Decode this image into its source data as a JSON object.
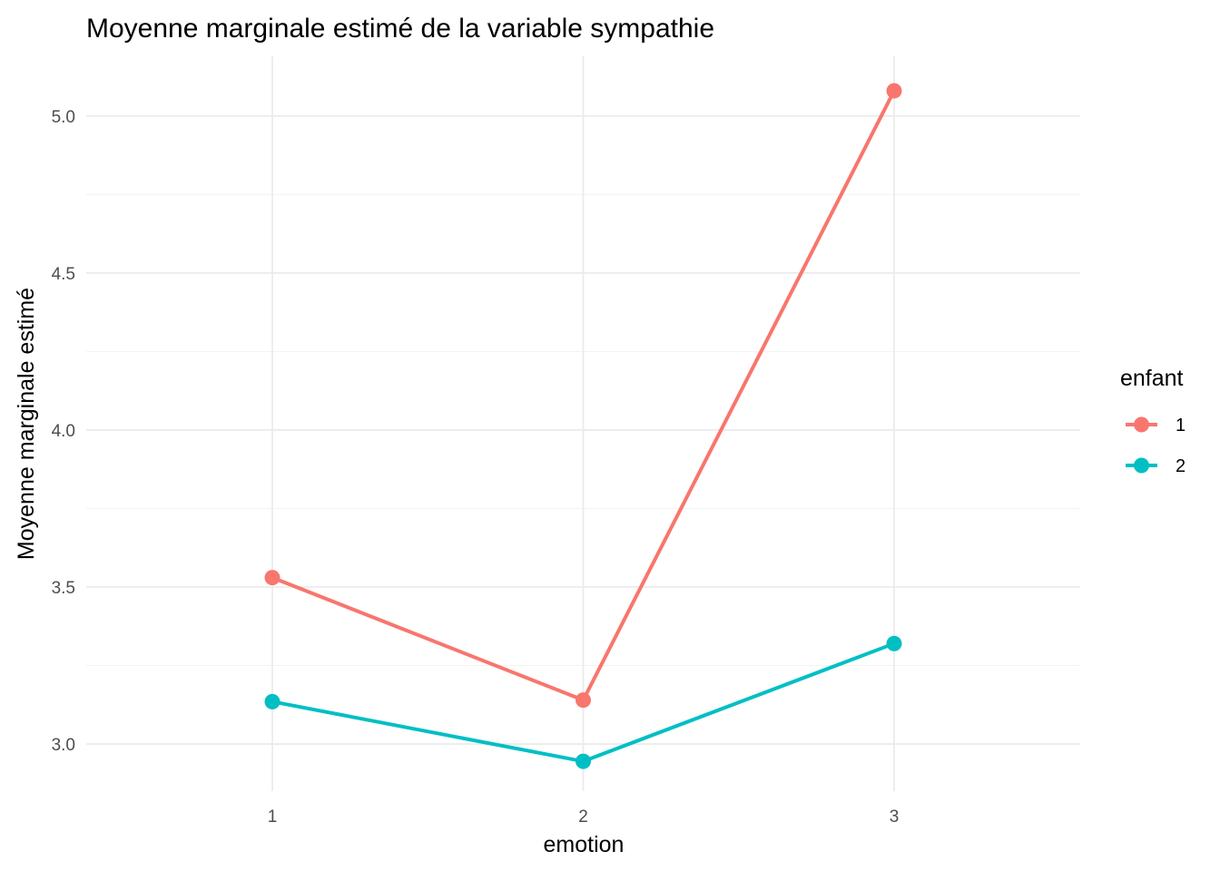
{
  "chart_data": {
    "type": "line",
    "title": "Moyenne marginale estimé de la variable sympathie",
    "xlabel": "emotion",
    "ylabel": "Moyenne marginale estimé",
    "categories": [
      "1",
      "2",
      "3"
    ],
    "ylim": [
      2.85,
      5.19
    ],
    "y_ticks": [
      3.0,
      3.5,
      4.0,
      4.5,
      5.0
    ],
    "y_tick_labels": [
      "3.0",
      "3.5",
      "4.0",
      "4.5",
      "5.0"
    ],
    "grid": true,
    "legend": {
      "title": "enfant",
      "position": "right"
    },
    "series": [
      {
        "name": "1",
        "color": "#F8766D",
        "values": [
          3.53,
          3.14,
          5.08
        ]
      },
      {
        "name": "2",
        "color": "#00BFC4",
        "values": [
          3.135,
          2.945,
          3.32
        ]
      }
    ]
  }
}
